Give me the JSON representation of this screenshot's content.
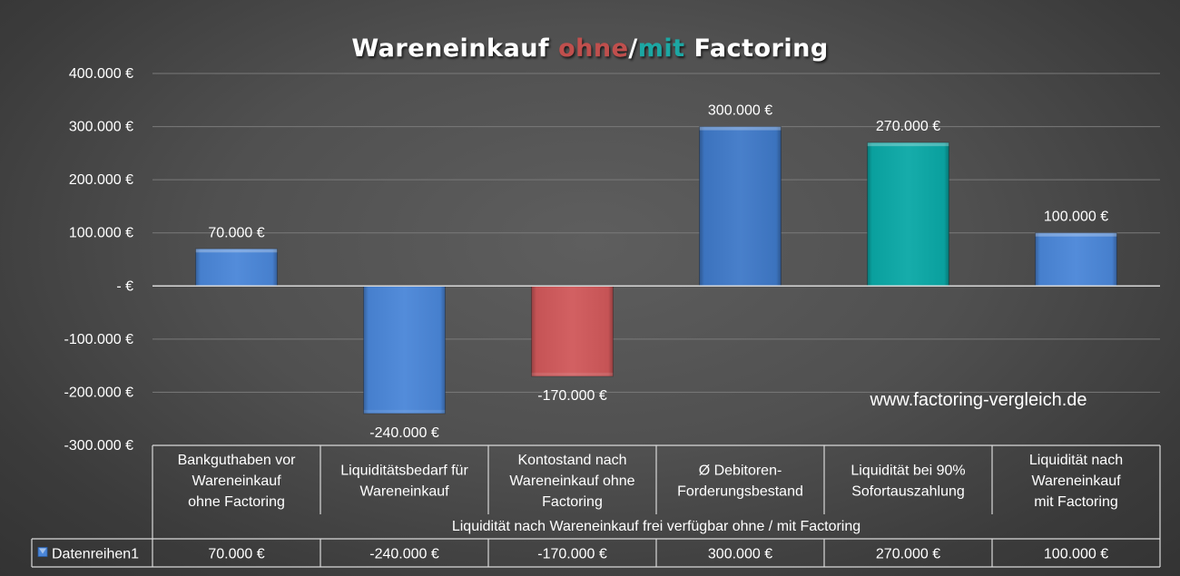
{
  "chart_data": {
    "type": "bar",
    "title": {
      "part1": "Wareneinkauf ",
      "part2": "ohne",
      "part3": "/",
      "part4": "mit",
      "part5": " Factoring"
    },
    "title_colors": {
      "normal": "#ffffff",
      "ohne": "#c0504d",
      "mit": "#1fa7a3"
    },
    "categories": [
      [
        "Bankguthaben vor",
        "Wareneinkauf",
        "ohne Factoring"
      ],
      [
        "Liquiditätsbedarf für",
        "Wareneinkauf"
      ],
      [
        "Kontostand nach",
        "Wareneinkauf ohne",
        "Factoring"
      ],
      [
        "Ø Debitoren-",
        "Forderungsbestand"
      ],
      [
        "Liquidität bei 90%",
        "Sofortauszahlung"
      ],
      [
        "Liquidität nach",
        "Wareneinkauf",
        "mit Factoring"
      ]
    ],
    "series": [
      {
        "name": "Datenreihen1",
        "values": [
          70000,
          -240000,
          -170000,
          300000,
          270000,
          100000
        ],
        "labels": [
          "70.000 €",
          "-240.000 €",
          "-170.000 €",
          "300.000 €",
          "270.000 €",
          "100.000 €"
        ]
      }
    ],
    "point_colors": [
      "#4a86d8",
      "#4a86d8",
      "#d0585a",
      "#3f79c8",
      "#0aa8a6",
      "#4a86d8"
    ],
    "xlabel": "Liquidität nach Wareneinkauf frei verfügbar ohne / mit Factoring",
    "ylabel": "",
    "ylim": [
      -300000,
      400000
    ],
    "yticks": [
      {
        "value": 400000,
        "label": "400.000 €"
      },
      {
        "value": 300000,
        "label": "300.000 €"
      },
      {
        "value": 200000,
        "label": "200.000 €"
      },
      {
        "value": 100000,
        "label": "100.000 €"
      },
      {
        "value": 0,
        "label": "-  €"
      },
      {
        "value": -100000,
        "label": "-100.000 €"
      },
      {
        "value": -200000,
        "label": "-200.000 €"
      },
      {
        "value": -300000,
        "label": "-300.000 €"
      }
    ],
    "grid": true,
    "legend": "data-table",
    "watermark": "www.factoring-vergleich.de"
  }
}
